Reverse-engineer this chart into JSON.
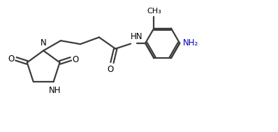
{
  "bg_color": "#ffffff",
  "line_color": "#3d3d3d",
  "text_color": "#000000",
  "nh2_color": "#0000bb",
  "line_width": 1.6,
  "figsize": [
    3.98,
    1.89
  ],
  "dpi": 100,
  "xlim": [
    0,
    10
  ],
  "ylim": [
    0,
    4.73
  ]
}
